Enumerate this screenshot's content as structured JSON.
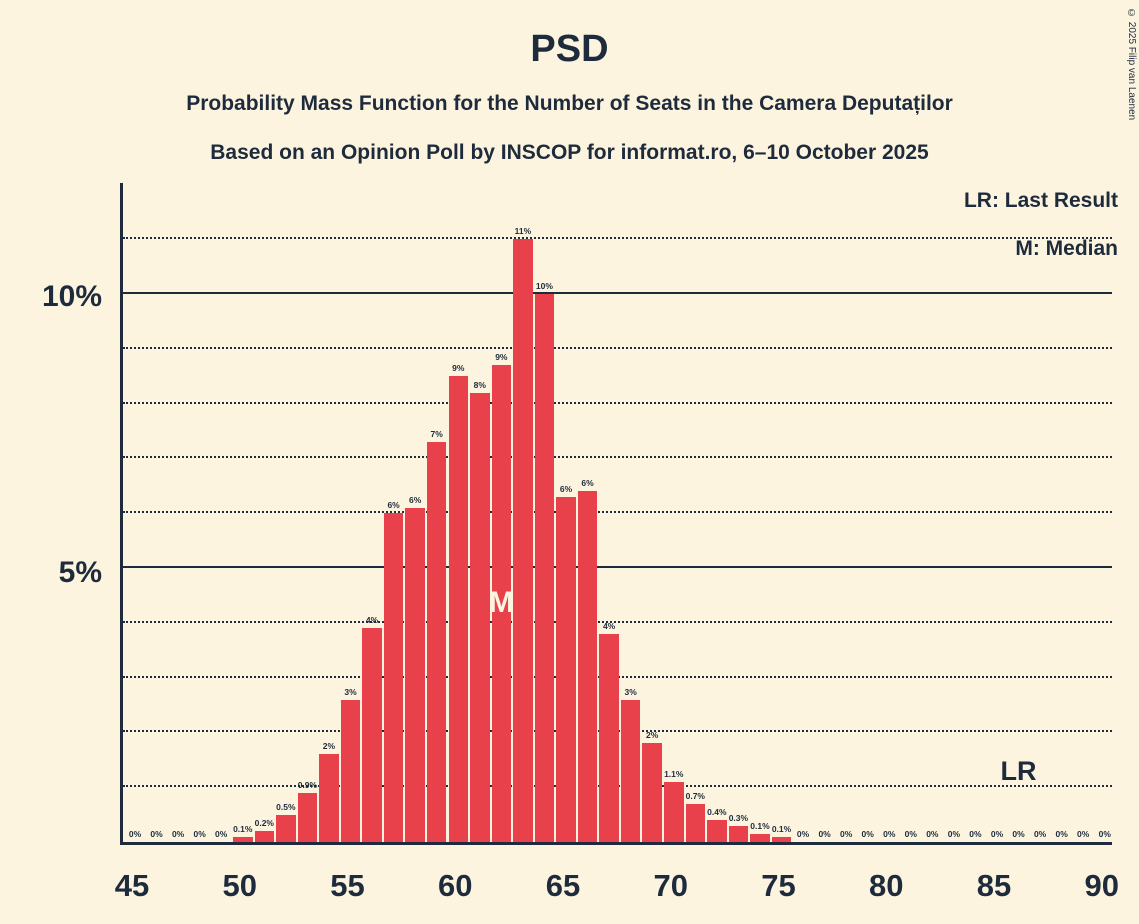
{
  "title": "PSD",
  "subtitles": [
    "Probability Mass Function for the Number of Seats in the Camera Deputaților",
    "Based on an Opinion Poll by INSCOP for informat.ro, 6–10 October 2025"
  ],
  "legend": {
    "lr": "LR: Last Result",
    "m": "M: Median"
  },
  "copyright": "© 2025 Filip van Laenen",
  "colors": {
    "background": "#FCF4DF",
    "bar": "#E8414B",
    "text": "#1E2B3C"
  },
  "chart_data": {
    "type": "bar",
    "title": "PSD",
    "x": [
      45,
      46,
      47,
      48,
      49,
      50,
      51,
      52,
      53,
      54,
      55,
      56,
      57,
      58,
      59,
      60,
      61,
      62,
      63,
      64,
      65,
      66,
      67,
      68,
      69,
      70,
      71,
      72,
      73,
      74,
      75,
      76,
      77,
      78,
      79,
      80,
      81,
      82,
      83,
      84,
      85,
      86,
      87,
      88,
      89,
      90
    ],
    "values": [
      0,
      0,
      0,
      0,
      0,
      0.1,
      0.2,
      0.5,
      0.9,
      1.6,
      2.6,
      3.9,
      6.0,
      6.1,
      7.3,
      8.5,
      8.2,
      8.7,
      11,
      10,
      6.3,
      6.4,
      3.8,
      2.6,
      1.8,
      1.1,
      0.7,
      0.4,
      0.3,
      0.15,
      0.1,
      0,
      0,
      0,
      0,
      0,
      0,
      0,
      0,
      0,
      0,
      0,
      0,
      0,
      0,
      0
    ],
    "labels": [
      "0%",
      "0%",
      "0%",
      "0%",
      "0%",
      "0.1%",
      "0.2%",
      "0.5%",
      "0.9%",
      "2%",
      "3%",
      "4%",
      "6%",
      "6%",
      "7%",
      "9%",
      "8%",
      "9%",
      "11%",
      "10%",
      "6%",
      "6%",
      "4%",
      "3%",
      "2%",
      "1.1%",
      "0.7%",
      "0.4%",
      "0.3%",
      "0.1%",
      "0.1%",
      "0%",
      "0%",
      "0%",
      "0%",
      "0%",
      "0%",
      "0%",
      "0%",
      "0%",
      "0%",
      "0%",
      "0%",
      "0%",
      "0%",
      "0%"
    ],
    "x_tick_labels": [
      45,
      50,
      55,
      60,
      65,
      70,
      75,
      80,
      85,
      90
    ],
    "y_axis_labels": [
      "5%",
      "10%"
    ],
    "ylim": [
      0,
      12.1
    ],
    "grid": "horizontal dotted lines at each 1%, solid lines at 5% and 10%",
    "legend_position": "top-right",
    "median_seat": 62,
    "median_marker_label": "M",
    "last_result_seat": 86,
    "last_result_marker_label": "LR"
  }
}
